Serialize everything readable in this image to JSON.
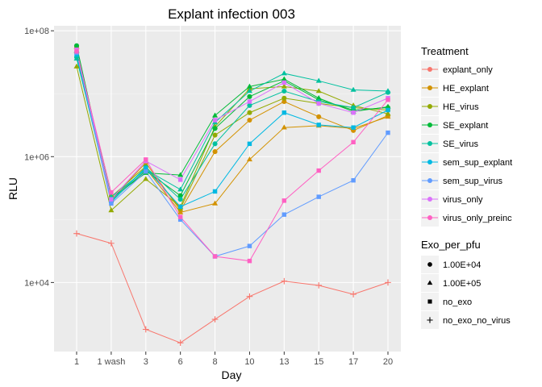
{
  "chart_data": {
    "type": "line",
    "title": "Explant infection 003",
    "xlabel": "Day",
    "ylabel": "RLU",
    "y_scale": "log10",
    "ylim": [
      800,
      120000000
    ],
    "grid": true,
    "legend_position": "right",
    "categories": [
      "1",
      "1 wash",
      "3",
      "6",
      "8",
      "10",
      "13",
      "15",
      "17",
      "20"
    ],
    "yticks": [
      {
        "value": 10000,
        "label": "1e+04"
      },
      {
        "value": 1000000,
        "label": "1e+06"
      },
      {
        "value": 100000000,
        "label": "1e+08"
      }
    ],
    "color_legend": {
      "title": "Treatment",
      "entries": [
        {
          "name": "explant_only",
          "color": "#F8766D"
        },
        {
          "name": "HE_explant",
          "color": "#D39200"
        },
        {
          "name": "HE_virus",
          "color": "#93AA00"
        },
        {
          "name": "SE_explant",
          "color": "#00BA38"
        },
        {
          "name": "SE_virus",
          "color": "#00C19F"
        },
        {
          "name": "sem_sup_explant",
          "color": "#00B9E3"
        },
        {
          "name": "sem_sup_virus",
          "color": "#619CFF"
        },
        {
          "name": "virus_only",
          "color": "#DB72FB"
        },
        {
          "name": "virus_only_preinc",
          "color": "#FF61C3"
        }
      ]
    },
    "shape_legend": {
      "title": "Exo_per_pfu",
      "entries": [
        {
          "label": "1.00E+04",
          "shape": "circle"
        },
        {
          "label": "1.00E+05",
          "shape": "triangle"
        },
        {
          "label": "no_exo",
          "shape": "square"
        },
        {
          "label": "no_exo_no_virus",
          "shape": "plus"
        }
      ]
    },
    "series": [
      {
        "treatment": "explant_only",
        "shape": "plus",
        "color": "#F8766D",
        "values": [
          60000,
          42000,
          1800,
          1100,
          2600,
          6000,
          10500,
          9000,
          6500,
          10000
        ]
      },
      {
        "treatment": "HE_explant",
        "shape": "circle",
        "color": "#D39200",
        "values": [
          55000000,
          210000,
          800000,
          140000,
          1200000,
          3800000,
          7500000,
          4300000,
          2600000,
          4500000
        ]
      },
      {
        "treatment": "HE_explant",
        "shape": "triangle",
        "color": "#D39200",
        "values": [
          55000000,
          210000,
          650000,
          130000,
          180000,
          900000,
          2900000,
          3100000,
          2800000,
          4300000
        ]
      },
      {
        "treatment": "HE_virus",
        "shape": "circle",
        "color": "#93AA00",
        "values": [
          45000000,
          230000,
          700000,
          150000,
          2200000,
          5000000,
          8500000,
          7000000,
          6000000,
          5500000
        ]
      },
      {
        "treatment": "HE_virus",
        "shape": "triangle",
        "color": "#93AA00",
        "values": [
          27000000,
          140000,
          440000,
          160000,
          3000000,
          12000000,
          13000000,
          11000000,
          6500000,
          4800000
        ]
      },
      {
        "treatment": "SE_explant",
        "shape": "circle",
        "color": "#00BA38",
        "values": [
          58000000,
          200000,
          600000,
          240000,
          2800000,
          9000000,
          16000000,
          8000000,
          5500000,
          6000000
        ]
      },
      {
        "treatment": "SE_explant",
        "shape": "triangle",
        "color": "#00BA38",
        "values": [
          48000000,
          220000,
          550000,
          510000,
          4500000,
          13000000,
          17000000,
          8500000,
          5200000,
          6200000
        ]
      },
      {
        "treatment": "SE_virus",
        "shape": "circle",
        "color": "#00C19F",
        "values": [
          38000000,
          190000,
          680000,
          210000,
          1600000,
          6500000,
          11000000,
          7500000,
          6000000,
          10500000
        ]
      },
      {
        "treatment": "SE_virus",
        "shape": "triangle",
        "color": "#00C19F",
        "values": [
          36000000,
          230000,
          620000,
          300000,
          3500000,
          11000000,
          21000000,
          16000000,
          11500000,
          11000000
        ]
      },
      {
        "treatment": "sem_sup_explant",
        "shape": "square",
        "color": "#00B9E3",
        "values": [
          42000000,
          200000,
          650000,
          160000,
          280000,
          1600000,
          5000000,
          3200000,
          2900000,
          5500000
        ]
      },
      {
        "treatment": "sem_sup_virus",
        "shape": "square",
        "color": "#619CFF",
        "values": [
          45000000,
          180000,
          580000,
          100000,
          26000,
          38000,
          120000,
          230000,
          420000,
          2400000
        ]
      },
      {
        "treatment": "virus_only",
        "shape": "square",
        "color": "#DB72FB",
        "values": [
          50000000,
          210000,
          850000,
          430000,
          3800000,
          7500000,
          15000000,
          7000000,
          5000000,
          8500000
        ]
      },
      {
        "treatment": "virus_only_preinc",
        "shape": "square",
        "color": "#FF61C3",
        "values": [
          47000000,
          270000,
          900000,
          110000,
          26000,
          22000,
          200000,
          600000,
          1700000,
          8000000
        ]
      }
    ]
  }
}
